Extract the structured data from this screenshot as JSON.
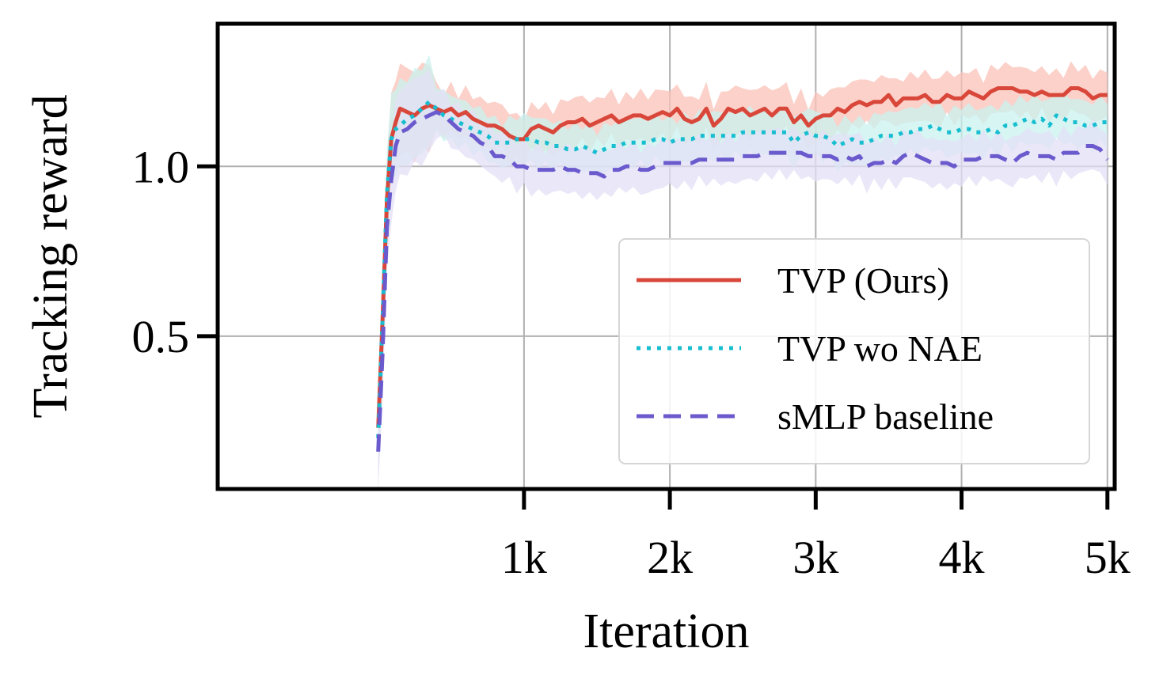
{
  "chart_data": {
    "type": "line",
    "title": "",
    "xlabel": "Iteration",
    "ylabel": "Tracking reward",
    "xlim": [
      -1100,
      5050
    ],
    "ylim": [
      0.05,
      1.42
    ],
    "xticks": [
      1000,
      2000,
      3000,
      4000,
      5000
    ],
    "xtick_labels": [
      "1k",
      "2k",
      "3k",
      "4k",
      "5k"
    ],
    "yticks": [
      0.5,
      1.0
    ],
    "ytick_labels": [
      "0.5",
      "1.0"
    ],
    "grid": true,
    "legend_position": "lower-right",
    "series": [
      {
        "name": "TVP (Ours)",
        "color": "#d9473a",
        "band_color": "#f9c2b8",
        "style": "solid",
        "x": [
          0,
          30,
          60,
          90,
          120,
          150,
          200,
          250,
          300,
          350,
          400,
          450,
          500,
          550,
          600,
          650,
          700,
          750,
          800,
          850,
          900,
          950,
          1000,
          1050,
          1100,
          1150,
          1200,
          1250,
          1300,
          1350,
          1400,
          1450,
          1500,
          1550,
          1600,
          1650,
          1700,
          1750,
          1800,
          1850,
          1900,
          1950,
          2000,
          2050,
          2100,
          2150,
          2200,
          2250,
          2300,
          2350,
          2400,
          2450,
          2500,
          2550,
          2600,
          2650,
          2700,
          2750,
          2800,
          2850,
          2900,
          2950,
          3000,
          3050,
          3100,
          3150,
          3200,
          3250,
          3300,
          3350,
          3400,
          3450,
          3500,
          3550,
          3600,
          3650,
          3700,
          3750,
          3800,
          3850,
          3900,
          3950,
          4000,
          4050,
          4100,
          4150,
          4200,
          4250,
          4300,
          4350,
          4400,
          4450,
          4500,
          4550,
          4600,
          4650,
          4700,
          4750,
          4800,
          4850,
          4900,
          4950,
          5000
        ],
        "values": [
          0.23,
          0.55,
          0.9,
          1.08,
          1.13,
          1.17,
          1.16,
          1.15,
          1.17,
          1.18,
          1.17,
          1.16,
          1.17,
          1.15,
          1.16,
          1.14,
          1.13,
          1.12,
          1.12,
          1.11,
          1.09,
          1.08,
          1.08,
          1.11,
          1.12,
          1.11,
          1.1,
          1.12,
          1.13,
          1.13,
          1.14,
          1.12,
          1.13,
          1.14,
          1.15,
          1.13,
          1.14,
          1.15,
          1.15,
          1.14,
          1.15,
          1.16,
          1.15,
          1.17,
          1.14,
          1.13,
          1.14,
          1.17,
          1.12,
          1.14,
          1.17,
          1.16,
          1.17,
          1.15,
          1.16,
          1.17,
          1.15,
          1.17,
          1.17,
          1.13,
          1.15,
          1.12,
          1.14,
          1.15,
          1.15,
          1.17,
          1.16,
          1.18,
          1.19,
          1.18,
          1.19,
          1.19,
          1.21,
          1.18,
          1.2,
          1.2,
          1.2,
          1.21,
          1.19,
          1.19,
          1.21,
          1.2,
          1.2,
          1.22,
          1.21,
          1.2,
          1.22,
          1.23,
          1.23,
          1.23,
          1.22,
          1.22,
          1.21,
          1.22,
          1.21,
          1.21,
          1.21,
          1.23,
          1.23,
          1.22,
          1.2,
          1.21,
          1.21
        ]
      },
      {
        "name": "TVP wo NAE",
        "color": "#17becf",
        "band_color": "#c9f1ef",
        "style": "dotted",
        "x": [
          0,
          30,
          60,
          90,
          120,
          150,
          200,
          250,
          300,
          350,
          400,
          450,
          500,
          550,
          600,
          650,
          700,
          750,
          800,
          850,
          900,
          950,
          1000,
          1050,
          1100,
          1150,
          1200,
          1250,
          1300,
          1350,
          1400,
          1450,
          1500,
          1550,
          1600,
          1650,
          1700,
          1750,
          1800,
          1850,
          1900,
          1950,
          2000,
          2050,
          2100,
          2150,
          2200,
          2250,
          2300,
          2350,
          2400,
          2450,
          2500,
          2550,
          2600,
          2650,
          2700,
          2750,
          2800,
          2850,
          2900,
          2950,
          3000,
          3050,
          3100,
          3150,
          3200,
          3250,
          3300,
          3350,
          3400,
          3450,
          3500,
          3550,
          3600,
          3650,
          3700,
          3750,
          3800,
          3850,
          3900,
          3950,
          4000,
          4050,
          4100,
          4150,
          4200,
          4250,
          4300,
          4350,
          4400,
          4450,
          4500,
          4550,
          4600,
          4650,
          4700,
          4750,
          4800,
          4850,
          4900,
          4950,
          5000
        ],
        "values": [
          0.2,
          0.55,
          0.92,
          1.08,
          1.11,
          1.12,
          1.14,
          1.15,
          1.17,
          1.19,
          1.17,
          1.15,
          1.14,
          1.13,
          1.12,
          1.11,
          1.1,
          1.09,
          1.07,
          1.07,
          1.07,
          1.08,
          1.08,
          1.08,
          1.07,
          1.07,
          1.06,
          1.06,
          1.05,
          1.05,
          1.06,
          1.05,
          1.04,
          1.05,
          1.06,
          1.06,
          1.07,
          1.07,
          1.07,
          1.07,
          1.08,
          1.08,
          1.07,
          1.08,
          1.08,
          1.08,
          1.09,
          1.09,
          1.09,
          1.09,
          1.09,
          1.09,
          1.1,
          1.1,
          1.1,
          1.1,
          1.1,
          1.1,
          1.1,
          1.07,
          1.09,
          1.1,
          1.09,
          1.09,
          1.08,
          1.06,
          1.07,
          1.08,
          1.07,
          1.07,
          1.08,
          1.09,
          1.09,
          1.09,
          1.1,
          1.1,
          1.11,
          1.11,
          1.12,
          1.11,
          1.1,
          1.1,
          1.11,
          1.11,
          1.1,
          1.1,
          1.11,
          1.1,
          1.12,
          1.12,
          1.13,
          1.14,
          1.13,
          1.14,
          1.12,
          1.15,
          1.14,
          1.13,
          1.13,
          1.12,
          1.12,
          1.13,
          1.13
        ]
      },
      {
        "name": "sMLP baseline",
        "color": "#6a5acd",
        "band_color": "#e3e0f5",
        "style": "dashed",
        "x": [
          0,
          30,
          60,
          90,
          120,
          150,
          200,
          250,
          300,
          350,
          400,
          450,
          500,
          550,
          600,
          650,
          700,
          750,
          800,
          850,
          900,
          950,
          1000,
          1050,
          1100,
          1150,
          1200,
          1250,
          1300,
          1350,
          1400,
          1450,
          1500,
          1550,
          1600,
          1650,
          1700,
          1750,
          1800,
          1850,
          1900,
          1950,
          2000,
          2050,
          2100,
          2150,
          2200,
          2250,
          2300,
          2350,
          2400,
          2450,
          2500,
          2550,
          2600,
          2650,
          2700,
          2750,
          2800,
          2850,
          2900,
          2950,
          3000,
          3050,
          3100,
          3150,
          3200,
          3250,
          3300,
          3350,
          3400,
          3450,
          3500,
          3550,
          3600,
          3650,
          3700,
          3750,
          3800,
          3850,
          3900,
          3950,
          4000,
          4050,
          4100,
          4150,
          4200,
          4250,
          4300,
          4350,
          4400,
          4450,
          4500,
          4550,
          4600,
          4650,
          4700,
          4750,
          4800,
          4850,
          4900,
          4950,
          5000
        ],
        "values": [
          0.16,
          0.45,
          0.82,
          0.96,
          1.06,
          1.1,
          1.11,
          1.13,
          1.14,
          1.15,
          1.16,
          1.15,
          1.13,
          1.11,
          1.1,
          1.09,
          1.07,
          1.06,
          1.03,
          1.03,
          1.02,
          1.0,
          1.0,
          0.99,
          0.99,
          0.99,
          0.99,
          1.0,
          0.99,
          0.99,
          0.98,
          0.98,
          0.98,
          0.97,
          0.99,
          0.99,
          1.0,
          1.0,
          0.99,
          0.99,
          1.0,
          1.01,
          1.01,
          1.01,
          1.01,
          1.01,
          1.02,
          1.02,
          1.02,
          1.02,
          1.02,
          1.02,
          1.03,
          1.03,
          1.03,
          1.04,
          1.04,
          1.04,
          1.04,
          1.04,
          1.04,
          1.03,
          1.03,
          1.03,
          1.03,
          1.02,
          1.03,
          1.02,
          1.03,
          1.0,
          1.01,
          1.01,
          1.02,
          1.01,
          1.03,
          1.04,
          1.03,
          1.02,
          1.01,
          1.01,
          1.01,
          1.0,
          1.02,
          1.02,
          1.02,
          1.03,
          1.03,
          1.03,
          1.02,
          1.01,
          1.03,
          1.04,
          1.03,
          1.03,
          1.03,
          1.02,
          1.04,
          1.04,
          1.04,
          1.06,
          1.06,
          1.05,
          1.02
        ]
      }
    ]
  }
}
